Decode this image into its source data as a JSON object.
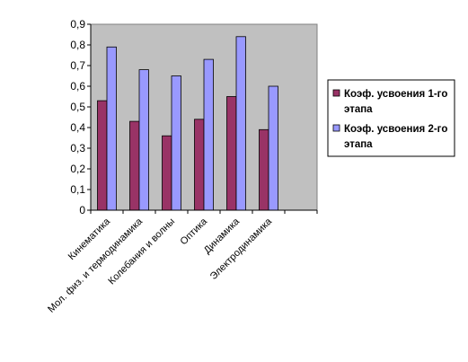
{
  "chart_data": {
    "type": "bar",
    "categories": [
      "Кинематика",
      "Мол. физ. и термодинамика",
      "Колебания и волны",
      "Оптика",
      "Динамика",
      "Электродинамика"
    ],
    "series": [
      {
        "name": "Коэф. усвоения 1-го этапа",
        "values": [
          0.53,
          0.43,
          0.36,
          0.44,
          0.55,
          0.39
        ],
        "color": "#993366"
      },
      {
        "name": "Коэф. усвоения 2-го этапа",
        "values": [
          0.79,
          0.68,
          0.65,
          0.73,
          0.84,
          0.6
        ],
        "color": "#9999ff"
      }
    ],
    "empty_category_slots": 1,
    "ylim": [
      0,
      0.9
    ],
    "yticks": [
      "0",
      "0,1",
      "0,2",
      "0,3",
      "0,4",
      "0,5",
      "0,6",
      "0,7",
      "0,8",
      "0,9"
    ],
    "grid": false,
    "plot_background": "#c0c0c0",
    "legend_position": "right",
    "legend": {
      "entries": [
        {
          "line1": "Коэф. усвоения 1-го",
          "line2": "этапа"
        },
        {
          "line1": "Коэф. усвоения 2-го",
          "line2": "этапа"
        }
      ]
    }
  }
}
